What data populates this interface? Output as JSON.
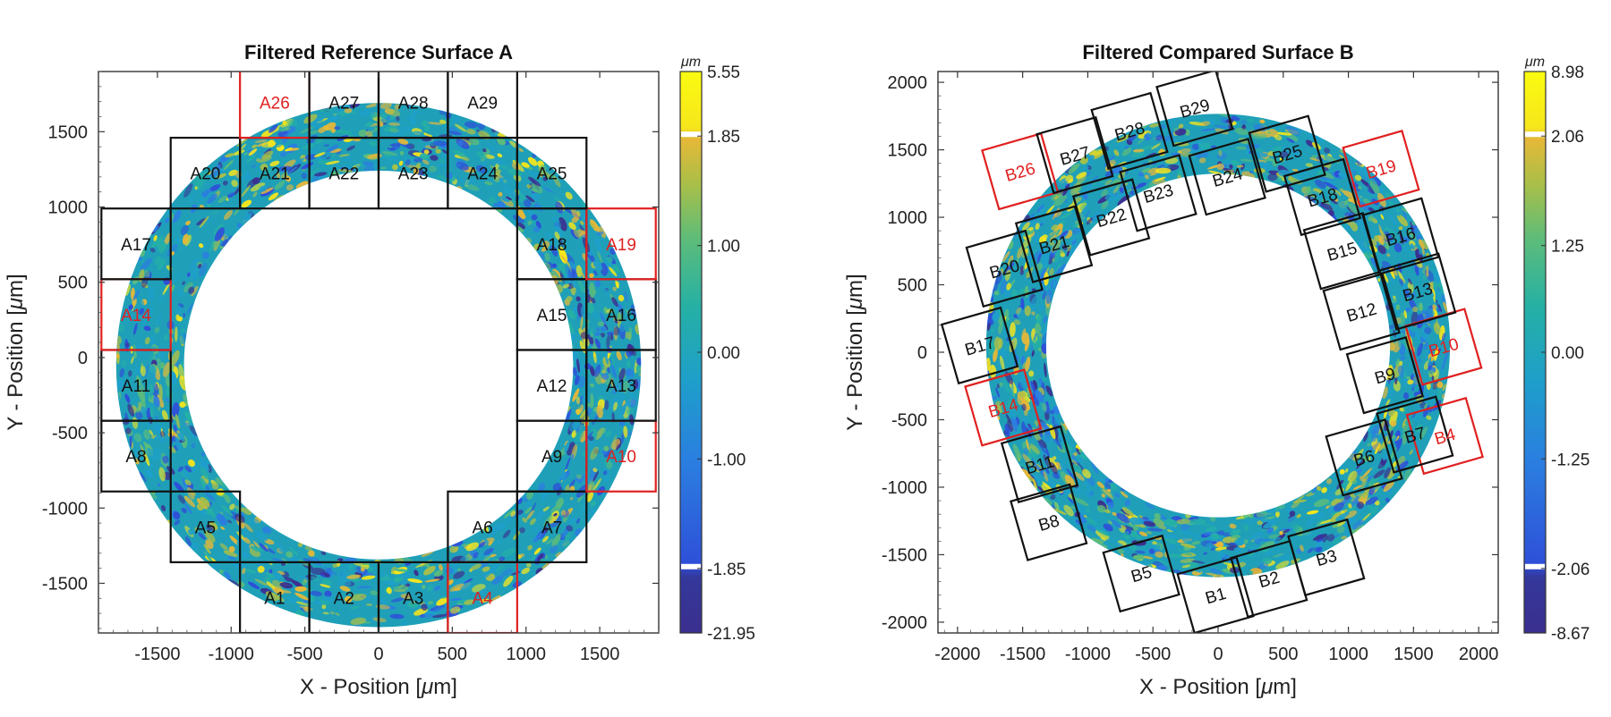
{
  "panels": [
    {
      "id": "A",
      "title": "Filtered Reference Surface A",
      "xlabel": "X - Position [",
      "ylabel": "Y - Position [",
      "label_unit": "m",
      "label_close": "]",
      "mu": "μ",
      "xlim": [
        -1900,
        1900
      ],
      "ylim": [
        -1830,
        1900
      ],
      "xticks": [
        "-1500",
        "-1000",
        "-500",
        "0",
        "500",
        "1000",
        "1500"
      ],
      "yticks": [
        "1500",
        "1000",
        "500",
        "0",
        "-500",
        "-1000",
        "-1500"
      ],
      "ring": {
        "cx": 0,
        "cy": -50,
        "r_outer": 1780,
        "r_inner": 1320
      },
      "colorbar": {
        "unit": "μm",
        "tick_labels": [
          "5.55",
          "1.85",
          "1.00",
          "0.00",
          "-1.00",
          "-1.85",
          "-21.95"
        ]
      },
      "patches_black": [
        "A1",
        "A2",
        "A3",
        "A5",
        "A6",
        "A7",
        "A8",
        "A9",
        "A11",
        "A12",
        "A13",
        "A15",
        "A16",
        "A17",
        "A18",
        "A20",
        "A21",
        "A22",
        "A23",
        "A24",
        "A25",
        "A27",
        "A28",
        "A29"
      ],
      "patches_red": [
        "A4",
        "A10",
        "A14",
        "A19",
        "A26"
      ]
    },
    {
      "id": "B",
      "title": "Filtered Compared Surface B",
      "xlabel": "X - Position [",
      "ylabel": "Y - Position [",
      "label_unit": "m",
      "label_close": "]",
      "mu": "μ",
      "xlim": [
        -2150,
        2150
      ],
      "ylim": [
        -2080,
        2080
      ],
      "xticks": [
        "-2000",
        "-1500",
        "-1000",
        "-500",
        "0",
        "500",
        "1000",
        "1500",
        "2000"
      ],
      "yticks": [
        "2000",
        "1500",
        "1000",
        "500",
        "0",
        "-500",
        "-1000",
        "-1500",
        "-2000"
      ],
      "ring": {
        "cx": 0,
        "cy": 50,
        "r_outer": 1780,
        "r_inner": 1320
      },
      "colorbar": {
        "unit": "μm",
        "tick_labels": [
          "8.98",
          "2.06",
          "1.25",
          "0.00",
          "-1.25",
          "-2.06",
          "-8.67"
        ]
      },
      "patches_black": [
        "B1",
        "B2",
        "B3",
        "B5",
        "B6",
        "B7",
        "B8",
        "B9",
        "B11",
        "B12",
        "B13",
        "B15",
        "B16",
        "B17",
        "B18",
        "B20",
        "B21",
        "B22",
        "B23",
        "B24",
        "B25",
        "B27",
        "B28",
        "B29"
      ],
      "patches_red": [
        "B4",
        "B10",
        "B14",
        "B19",
        "B26"
      ]
    }
  ],
  "chart_data": [
    {
      "type": "heatmap",
      "title": "Filtered Reference Surface A",
      "xlabel": "X - Position [μm]",
      "ylabel": "Y - Position [μm]",
      "xlim": [
        -1900,
        1900
      ],
      "ylim": [
        -1830,
        1900
      ],
      "colorbar": {
        "unit": "μm",
        "ticks": [
          5.55,
          1.85,
          1.0,
          0.0,
          -1.0,
          -1.85,
          -21.95
        ]
      },
      "annulus": {
        "center": [
          0,
          -50
        ],
        "outer_radius": 1780,
        "inner_radius": 1320
      },
      "grid": false,
      "patches": [
        {
          "label": "A1",
          "x": [
            -940,
            -470
          ],
          "y": [
            -1830,
            -1360
          ],
          "color": "black"
        },
        {
          "label": "A2",
          "x": [
            -470,
            0
          ],
          "y": [
            -1830,
            -1360
          ],
          "color": "black"
        },
        {
          "label": "A3",
          "x": [
            0,
            470
          ],
          "y": [
            -1830,
            -1360
          ],
          "color": "black"
        },
        {
          "label": "A4",
          "x": [
            470,
            940
          ],
          "y": [
            -1830,
            -1360
          ],
          "color": "red"
        },
        {
          "label": "A5",
          "x": [
            -1410,
            -940
          ],
          "y": [
            -1360,
            -890
          ],
          "color": "black"
        },
        {
          "label": "A6",
          "x": [
            470,
            940
          ],
          "y": [
            -1360,
            -890
          ],
          "color": "black"
        },
        {
          "label": "A7",
          "x": [
            940,
            1410
          ],
          "y": [
            -1360,
            -890
          ],
          "color": "black"
        },
        {
          "label": "A8",
          "x": [
            -1880,
            -1410
          ],
          "y": [
            -890,
            -420
          ],
          "color": "black"
        },
        {
          "label": "A9",
          "x": [
            940,
            1410
          ],
          "y": [
            -890,
            -420
          ],
          "color": "black"
        },
        {
          "label": "A10",
          "x": [
            1410,
            1880
          ],
          "y": [
            -890,
            -420
          ],
          "color": "red"
        },
        {
          "label": "A11",
          "x": [
            -1880,
            -1410
          ],
          "y": [
            -420,
            50
          ],
          "color": "black"
        },
        {
          "label": "A12",
          "x": [
            940,
            1410
          ],
          "y": [
            -420,
            50
          ],
          "color": "black"
        },
        {
          "label": "A13",
          "x": [
            1410,
            1880
          ],
          "y": [
            -420,
            50
          ],
          "color": "black"
        },
        {
          "label": "A14",
          "x": [
            -1880,
            -1410
          ],
          "y": [
            50,
            520
          ],
          "color": "red"
        },
        {
          "label": "A15",
          "x": [
            940,
            1410
          ],
          "y": [
            50,
            520
          ],
          "color": "black"
        },
        {
          "label": "A16",
          "x": [
            1410,
            1880
          ],
          "y": [
            50,
            520
          ],
          "color": "black"
        },
        {
          "label": "A17",
          "x": [
            -1880,
            -1410
          ],
          "y": [
            520,
            990
          ],
          "color": "black"
        },
        {
          "label": "A18",
          "x": [
            940,
            1410
          ],
          "y": [
            520,
            990
          ],
          "color": "black"
        },
        {
          "label": "A19",
          "x": [
            1410,
            1880
          ],
          "y": [
            520,
            990
          ],
          "color": "red"
        },
        {
          "label": "A20",
          "x": [
            -1410,
            -940
          ],
          "y": [
            990,
            1460
          ],
          "color": "black"
        },
        {
          "label": "A21",
          "x": [
            -940,
            -470
          ],
          "y": [
            990,
            1460
          ],
          "color": "black"
        },
        {
          "label": "A22",
          "x": [
            -470,
            0
          ],
          "y": [
            990,
            1460
          ],
          "color": "black"
        },
        {
          "label": "A23",
          "x": [
            0,
            470
          ],
          "y": [
            990,
            1460
          ],
          "color": "black"
        },
        {
          "label": "A24",
          "x": [
            470,
            940
          ],
          "y": [
            990,
            1460
          ],
          "color": "black"
        },
        {
          "label": "A25",
          "x": [
            940,
            1410
          ],
          "y": [
            990,
            1460
          ],
          "color": "black"
        },
        {
          "label": "A26",
          "x": [
            -940,
            -470
          ],
          "y": [
            1460,
            1930
          ],
          "color": "red"
        },
        {
          "label": "A27",
          "x": [
            -470,
            0
          ],
          "y": [
            1460,
            1930
          ],
          "color": "black"
        },
        {
          "label": "A28",
          "x": [
            0,
            470
          ],
          "y": [
            1460,
            1930
          ],
          "color": "black"
        },
        {
          "label": "A29",
          "x": [
            470,
            940
          ],
          "y": [
            1460,
            1930
          ],
          "color": "black"
        }
      ]
    },
    {
      "type": "heatmap",
      "title": "Filtered Compared Surface B",
      "xlabel": "X - Position [μm]",
      "ylabel": "Y - Position [μm]",
      "xlim": [
        -2150,
        2150
      ],
      "ylim": [
        -2080,
        2080
      ],
      "colorbar": {
        "unit": "μm",
        "ticks": [
          8.98,
          2.06,
          1.25,
          0.0,
          -1.25,
          -2.06,
          -8.67
        ]
      },
      "annulus": {
        "center": [
          0,
          50
        ],
        "outer_radius": 1780,
        "inner_radius": 1320
      },
      "grid": false,
      "patches_rotation_deg": 16,
      "patches": [
        {
          "label": "B1",
          "cx": -20,
          "cy": -1800,
          "color": "black"
        },
        {
          "label": "B2",
          "cx": 390,
          "cy": -1680,
          "color": "black"
        },
        {
          "label": "B3",
          "cx": 830,
          "cy": -1520,
          "color": "black"
        },
        {
          "label": "B4",
          "cx": 1740,
          "cy": -620,
          "color": "red"
        },
        {
          "label": "B5",
          "cx": -590,
          "cy": -1640,
          "color": "black"
        },
        {
          "label": "B6",
          "cx": 1120,
          "cy": -780,
          "color": "black"
        },
        {
          "label": "B7",
          "cx": 1510,
          "cy": -610,
          "color": "black"
        },
        {
          "label": "B8",
          "cx": -1300,
          "cy": -1260,
          "color": "black"
        },
        {
          "label": "B9",
          "cx": 1280,
          "cy": -170,
          "color": "black"
        },
        {
          "label": "B10",
          "cx": 1730,
          "cy": 40,
          "color": "red"
        },
        {
          "label": "B11",
          "cx": -1370,
          "cy": -830,
          "color": "black"
        },
        {
          "label": "B12",
          "cx": 1100,
          "cy": 300,
          "color": "black"
        },
        {
          "label": "B13",
          "cx": 1530,
          "cy": 450,
          "color": "black"
        },
        {
          "label": "B14",
          "cx": -1650,
          "cy": -410,
          "color": "red"
        },
        {
          "label": "B15",
          "cx": 950,
          "cy": 750,
          "color": "black"
        },
        {
          "label": "B16",
          "cx": 1400,
          "cy": 860,
          "color": "black"
        },
        {
          "label": "B17",
          "cx": -1830,
          "cy": 50,
          "color": "black"
        },
        {
          "label": "B18",
          "cx": 800,
          "cy": 1150,
          "color": "black"
        },
        {
          "label": "B19",
          "cx": 1250,
          "cy": 1360,
          "color": "red"
        },
        {
          "label": "B20",
          "cx": -1640,
          "cy": 620,
          "color": "black"
        },
        {
          "label": "B21",
          "cx": -1260,
          "cy": 800,
          "color": "black"
        },
        {
          "label": "B22",
          "cx": -820,
          "cy": 1000,
          "color": "black"
        },
        {
          "label": "B23",
          "cx": -460,
          "cy": 1180,
          "color": "black"
        },
        {
          "label": "B24",
          "cx": 70,
          "cy": 1300,
          "color": "black"
        },
        {
          "label": "B25",
          "cx": 530,
          "cy": 1470,
          "color": "black"
        },
        {
          "label": "B26",
          "cx": -1520,
          "cy": 1340,
          "color": "red"
        },
        {
          "label": "B27",
          "cx": -1100,
          "cy": 1460,
          "color": "black"
        },
        {
          "label": "B28",
          "cx": -680,
          "cy": 1640,
          "color": "black"
        },
        {
          "label": "B29",
          "cx": -180,
          "cy": 1810,
          "color": "black"
        }
      ]
    }
  ],
  "colors": {
    "patch_black": "#111111",
    "patch_red": "#e02020",
    "ring_base": "#1fa0b8"
  },
  "colormap": [
    "#3b2f8f",
    "#2e4fd8",
    "#2b7de0",
    "#1e9fca",
    "#25b0a5",
    "#5cbc7a",
    "#a9bf48",
    "#e6b838",
    "#f6e61c",
    "#fbfb10"
  ]
}
